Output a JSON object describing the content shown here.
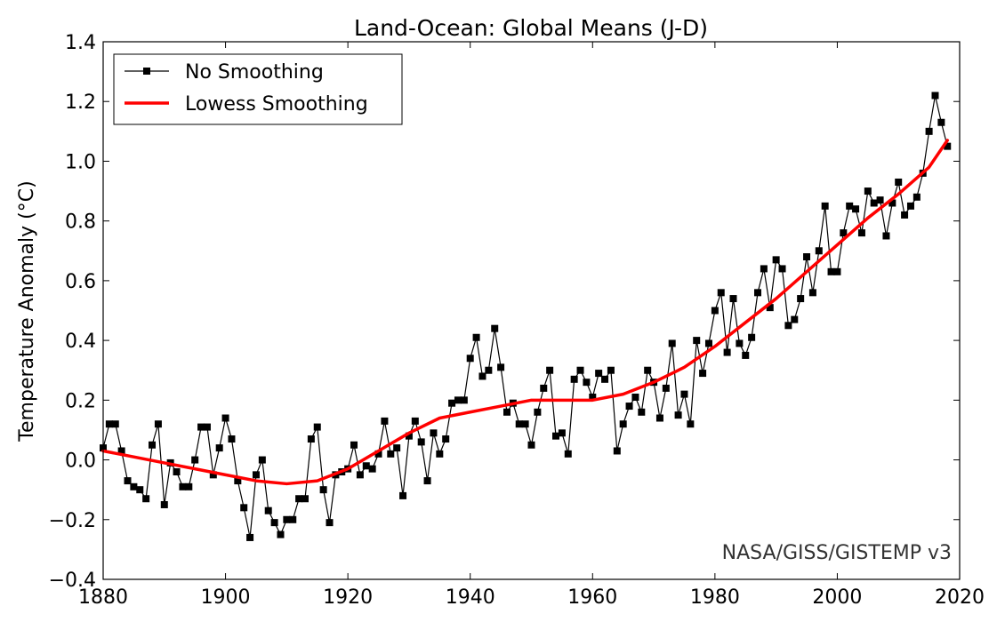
{
  "chart_data": {
    "type": "line",
    "title": "Land-Ocean: Global Means (J-D)",
    "xlabel": "",
    "ylabel": "Temperature Anomaly (°C)",
    "xlim": [
      1880,
      2020
    ],
    "ylim": [
      -0.4,
      1.4
    ],
    "xticks": [
      "1880",
      "1900",
      "1920",
      "1940",
      "1960",
      "1980",
      "2000",
      "2020"
    ],
    "yticks": [
      "−0.4",
      "−0.2",
      "0.0",
      "0.2",
      "0.4",
      "0.6",
      "0.8",
      "1.0",
      "1.2",
      "1.4"
    ],
    "legend_position": "top-left",
    "grid": false,
    "annotation": "NASA/GISS/GISTEMP v3",
    "series": [
      {
        "name": "No Smoothing",
        "color": "#000000",
        "marker": "square",
        "x": [
          1880,
          1881,
          1882,
          1883,
          1884,
          1885,
          1886,
          1887,
          1888,
          1889,
          1890,
          1891,
          1892,
          1893,
          1894,
          1895,
          1896,
          1897,
          1898,
          1899,
          1900,
          1901,
          1902,
          1903,
          1904,
          1905,
          1906,
          1907,
          1908,
          1909,
          1910,
          1911,
          1912,
          1913,
          1914,
          1915,
          1916,
          1917,
          1918,
          1919,
          1920,
          1921,
          1922,
          1923,
          1924,
          1925,
          1926,
          1927,
          1928,
          1929,
          1930,
          1931,
          1932,
          1933,
          1934,
          1935,
          1936,
          1937,
          1938,
          1939,
          1940,
          1941,
          1942,
          1943,
          1944,
          1945,
          1946,
          1947,
          1948,
          1949,
          1950,
          1951,
          1952,
          1953,
          1954,
          1955,
          1956,
          1957,
          1958,
          1959,
          1960,
          1961,
          1962,
          1963,
          1964,
          1965,
          1966,
          1967,
          1968,
          1969,
          1970,
          1971,
          1972,
          1973,
          1974,
          1975,
          1976,
          1977,
          1978,
          1979,
          1980,
          1981,
          1982,
          1983,
          1984,
          1985,
          1986,
          1987,
          1988,
          1989,
          1990,
          1991,
          1992,
          1993,
          1994,
          1995,
          1996,
          1997,
          1998,
          1999,
          2000,
          2001,
          2002,
          2003,
          2004,
          2005,
          2006,
          2007,
          2008,
          2009,
          2010,
          2011,
          2012,
          2013,
          2014,
          2015,
          2016,
          2017,
          2018
        ],
        "y": [
          0.04,
          0.12,
          0.12,
          0.03,
          -0.07,
          -0.09,
          -0.1,
          -0.13,
          0.05,
          0.12,
          -0.15,
          -0.01,
          -0.04,
          -0.09,
          -0.09,
          0.0,
          0.11,
          0.11,
          -0.05,
          0.04,
          0.14,
          0.07,
          -0.07,
          -0.16,
          -0.26,
          -0.05,
          0.0,
          -0.17,
          -0.21,
          -0.25,
          -0.2,
          -0.2,
          -0.13,
          -0.13,
          0.07,
          0.11,
          -0.1,
          -0.21,
          -0.05,
          -0.04,
          -0.03,
          0.05,
          -0.05,
          -0.02,
          -0.03,
          0.02,
          0.13,
          0.02,
          0.04,
          -0.12,
          0.08,
          0.13,
          0.06,
          -0.07,
          0.09,
          0.02,
          0.07,
          0.19,
          0.2,
          0.2,
          0.34,
          0.41,
          0.28,
          0.3,
          0.44,
          0.31,
          0.16,
          0.19,
          0.12,
          0.12,
          0.05,
          0.16,
          0.24,
          0.3,
          0.08,
          0.09,
          0.02,
          0.27,
          0.3,
          0.26,
          0.21,
          0.29,
          0.27,
          0.3,
          0.03,
          0.12,
          0.18,
          0.21,
          0.16,
          0.3,
          0.26,
          0.14,
          0.24,
          0.39,
          0.15,
          0.22,
          0.12,
          0.4,
          0.29,
          0.39,
          0.5,
          0.56,
          0.36,
          0.54,
          0.39,
          0.35,
          0.41,
          0.56,
          0.64,
          0.51,
          0.67,
          0.64,
          0.45,
          0.47,
          0.54,
          0.68,
          0.56,
          0.7,
          0.85,
          0.63,
          0.63,
          0.76,
          0.85,
          0.84,
          0.76,
          0.9,
          0.86,
          0.87,
          0.75,
          0.86,
          0.93,
          0.82,
          0.85,
          0.88,
          0.96,
          1.1,
          1.22,
          1.13,
          1.05
        ]
      },
      {
        "name": "Lowess Smoothing",
        "color": "#ff0000",
        "marker": "none",
        "x": [
          1880,
          1885,
          1890,
          1895,
          1900,
          1905,
          1910,
          1915,
          1920,
          1925,
          1930,
          1935,
          1940,
          1945,
          1950,
          1955,
          1960,
          1965,
          1970,
          1975,
          1980,
          1985,
          1990,
          1995,
          2000,
          2005,
          2010,
          2015,
          2018
        ],
        "y": [
          0.03,
          0.01,
          -0.01,
          -0.03,
          -0.05,
          -0.07,
          -0.08,
          -0.07,
          -0.03,
          0.03,
          0.09,
          0.14,
          0.16,
          0.18,
          0.2,
          0.2,
          0.2,
          0.22,
          0.26,
          0.31,
          0.38,
          0.46,
          0.54,
          0.63,
          0.72,
          0.81,
          0.89,
          0.98,
          1.07
        ]
      }
    ]
  }
}
